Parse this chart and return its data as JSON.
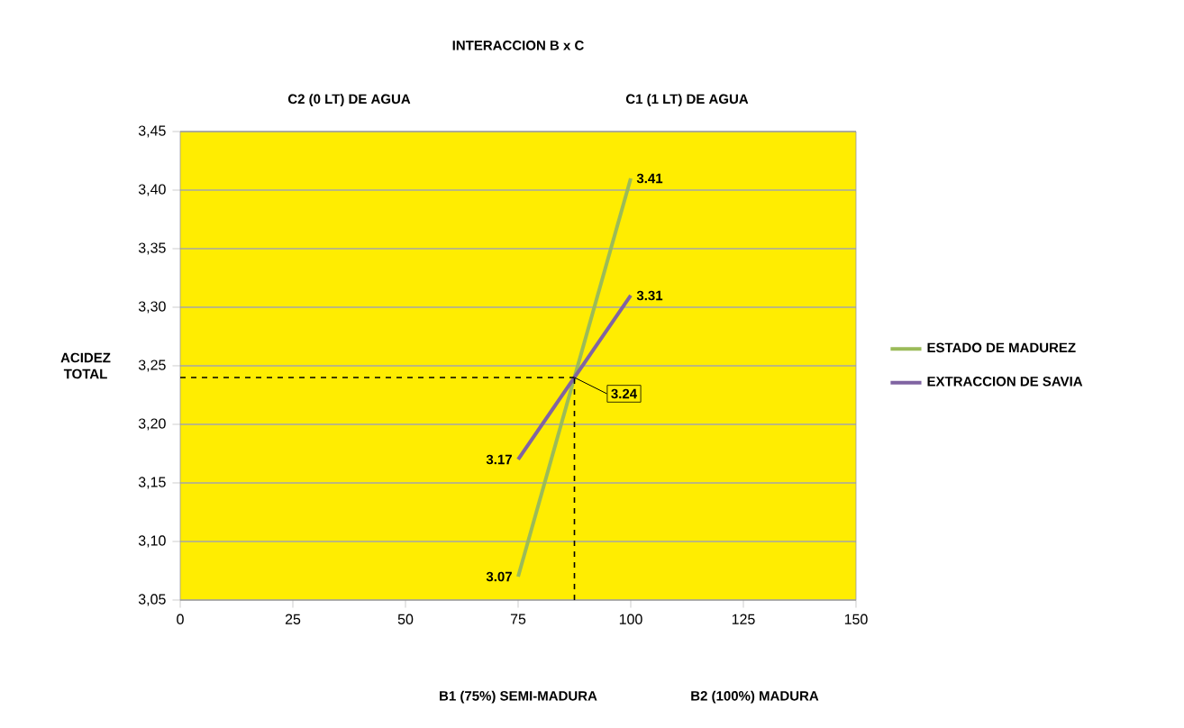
{
  "chart_data": {
    "type": "line",
    "title": "INTERACCION B x C",
    "ylabel": "ACIDEZ TOTAL",
    "annotations": [
      "C2 (0 LT) DE AGUA",
      "C1 (1 LT) DE AGUA",
      "B1 (75%) SEMI-MADURA",
      "B2 (100%) MADURA"
    ],
    "x": [
      75,
      100
    ],
    "series": [
      {
        "name": "ESTADO DE MADUREZ",
        "color": "#9bbb59",
        "values": [
          3.07,
          3.41
        ]
      },
      {
        "name": "EXTRACCION DE SAVIA",
        "color": "#8064a2",
        "values": [
          3.17,
          3.31
        ]
      }
    ],
    "xlim": [
      0,
      150
    ],
    "xticks": [
      0,
      25,
      50,
      75,
      100,
      125,
      150
    ],
    "ylim": [
      3.05,
      3.45
    ],
    "yticks": [
      {
        "value": 3.05,
        "label": "3,05"
      },
      {
        "value": 3.1,
        "label": "3,10"
      },
      {
        "value": 3.15,
        "label": "3,15"
      },
      {
        "value": 3.2,
        "label": "3,20"
      },
      {
        "value": 3.25,
        "label": "3,25"
      },
      {
        "value": 3.3,
        "label": "3,30"
      },
      {
        "value": 3.35,
        "label": "3,35"
      },
      {
        "value": 3.4,
        "label": "3,40"
      },
      {
        "value": 3.45,
        "label": "3,45"
      }
    ],
    "ref_lines": [
      {
        "axis": "x",
        "value": 87.5,
        "color": "#000000",
        "line_style": "dashed"
      },
      {
        "axis": "y",
        "value": 3.24,
        "label": "3.24",
        "color": "#000000",
        "line_style": "dashed"
      }
    ],
    "data_labels": true,
    "grid": "y",
    "legend": "right",
    "marker": "none",
    "line_style": "solid"
  }
}
